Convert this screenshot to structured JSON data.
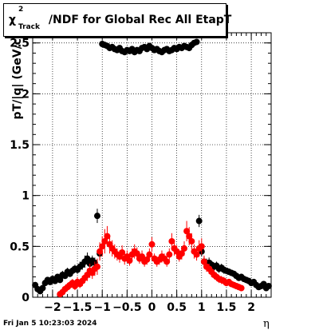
{
  "footer": {
    "timestamp": "Fri Jan  5 10:23:03 2024"
  },
  "chart_data": {
    "type": "scatter",
    "title": "χ²Track/NDF for Global Rec All EtapT",
    "title_parts": {
      "symbol": "χ",
      "sup": "2",
      "sub": "Track",
      "rest": "/NDF for Global Rec All EtapT"
    },
    "xlabel": "η",
    "ylabel": "pT/|q| (GeV/c",
    "xlim": [
      -2.4,
      2.4
    ],
    "ylim": [
      0,
      2.6
    ],
    "xticks": [
      -2,
      -1.5,
      -1,
      -0.5,
      0,
      0.5,
      1,
      1.5,
      2
    ],
    "xtick_labels": [
      "−2",
      "−1.5",
      "−1",
      "−0.5",
      "0",
      "0.5",
      "1",
      "1.5",
      "2"
    ],
    "yticks": [
      0,
      0.5,
      1,
      1.5,
      2,
      2.5
    ],
    "ytick_labels": [
      "0",
      "0.5",
      "1",
      "1.5",
      "2",
      "2.5"
    ],
    "grid": true,
    "series": [
      {
        "color": "#000000",
        "x": [
          -2.35,
          -2.3,
          -2.25,
          -2.2,
          -2.15,
          -2.1,
          -2.05,
          -2.0,
          -1.95,
          -1.9,
          -1.85,
          -1.8,
          -1.75,
          -1.7,
          -1.65,
          -1.6,
          -1.55,
          -1.5,
          -1.45,
          -1.4,
          -1.35,
          -1.3,
          -1.25,
          -1.2,
          -1.15,
          -1.1,
          -1.05,
          -1.0,
          -0.95,
          -0.9,
          -0.85,
          -0.8,
          -0.75,
          -0.7,
          -0.65,
          -0.6,
          -0.55,
          -0.5,
          -0.45,
          -0.4,
          -0.35,
          -0.3,
          -0.25,
          -0.2,
          -0.15,
          -0.1,
          -0.05,
          0.0,
          0.05,
          0.1,
          0.15,
          0.2,
          0.25,
          0.3,
          0.35,
          0.4,
          0.45,
          0.5,
          0.55,
          0.6,
          0.65,
          0.7,
          0.75,
          0.8,
          0.85,
          0.9,
          0.95,
          1.0,
          1.05,
          1.1,
          1.15,
          1.2,
          1.25,
          1.3,
          1.35,
          1.4,
          1.45,
          1.5,
          1.55,
          1.6,
          1.65,
          1.7,
          1.75,
          1.8,
          1.85,
          1.9,
          1.95,
          2.0,
          2.05,
          2.1,
          2.15,
          2.2,
          2.25,
          2.3,
          2.35
        ],
        "y": [
          0.12,
          0.08,
          0.06,
          0.09,
          0.14,
          0.17,
          0.15,
          0.18,
          0.16,
          0.2,
          0.17,
          0.22,
          0.21,
          0.25,
          0.23,
          0.26,
          0.28,
          0.27,
          0.3,
          0.32,
          0.35,
          0.38,
          0.33,
          0.36,
          0.34,
          0.8,
          0.43,
          2.49,
          2.48,
          2.47,
          2.45,
          2.46,
          2.44,
          2.43,
          2.45,
          2.42,
          2.41,
          2.43,
          2.42,
          2.44,
          2.41,
          2.43,
          2.42,
          2.45,
          2.46,
          2.44,
          2.47,
          2.45,
          2.43,
          2.44,
          2.42,
          2.41,
          2.43,
          2.44,
          2.42,
          2.43,
          2.45,
          2.44,
          2.46,
          2.45,
          2.47,
          2.46,
          2.45,
          2.48,
          2.5,
          2.51,
          0.75,
          0.45,
          0.35,
          0.33,
          0.34,
          0.32,
          0.3,
          0.31,
          0.28,
          0.29,
          0.27,
          0.26,
          0.25,
          0.24,
          0.23,
          0.21,
          0.19,
          0.2,
          0.18,
          0.17,
          0.16,
          0.14,
          0.15,
          0.12,
          0.1,
          0.11,
          0.13,
          0.09,
          0.11
        ],
        "err": [
          0.03,
          0.03,
          0.02,
          0.02,
          0.03,
          0.03,
          0.02,
          0.03,
          0.03,
          0.03,
          0.03,
          0.04,
          0.03,
          0.04,
          0.03,
          0.04,
          0.04,
          0.04,
          0.05,
          0.05,
          0.06,
          0.06,
          0.05,
          0.05,
          0.05,
          0.07,
          0.06,
          0.02,
          0.02,
          0.02,
          0.02,
          0.02,
          0.02,
          0.02,
          0.02,
          0.02,
          0.02,
          0.02,
          0.02,
          0.02,
          0.02,
          0.02,
          0.02,
          0.02,
          0.02,
          0.02,
          0.02,
          0.02,
          0.02,
          0.02,
          0.02,
          0.02,
          0.02,
          0.02,
          0.02,
          0.02,
          0.02,
          0.02,
          0.02,
          0.02,
          0.02,
          0.02,
          0.02,
          0.02,
          0.02,
          0.02,
          0.06,
          0.05,
          0.05,
          0.05,
          0.05,
          0.04,
          0.04,
          0.04,
          0.04,
          0.04,
          0.04,
          0.03,
          0.03,
          0.03,
          0.03,
          0.03,
          0.03,
          0.03,
          0.03,
          0.03,
          0.03,
          0.03,
          0.03,
          0.02,
          0.02,
          0.02,
          0.02,
          0.02,
          0.02
        ]
      },
      {
        "color": "#ff0000",
        "x": [
          -1.85,
          -1.8,
          -1.75,
          -1.7,
          -1.65,
          -1.6,
          -1.55,
          -1.5,
          -1.45,
          -1.4,
          -1.35,
          -1.3,
          -1.25,
          -1.2,
          -1.15,
          -1.1,
          -1.05,
          -1.0,
          -0.95,
          -0.9,
          -0.85,
          -0.8,
          -0.75,
          -0.7,
          -0.65,
          -0.6,
          -0.55,
          -0.5,
          -0.45,
          -0.4,
          -0.35,
          -0.3,
          -0.25,
          -0.2,
          -0.15,
          -0.1,
          -0.05,
          0.0,
          0.05,
          0.1,
          0.15,
          0.2,
          0.25,
          0.3,
          0.35,
          0.4,
          0.45,
          0.5,
          0.55,
          0.6,
          0.65,
          0.7,
          0.75,
          0.8,
          0.85,
          0.9,
          0.95,
          1.0,
          1.05,
          1.1,
          1.15,
          1.2,
          1.25,
          1.3,
          1.35,
          1.4,
          1.45,
          1.5,
          1.55,
          1.6,
          1.65,
          1.7,
          1.75,
          1.8
        ],
        "y": [
          0.03,
          0.05,
          0.08,
          0.1,
          0.12,
          0.14,
          0.11,
          0.15,
          0.13,
          0.16,
          0.19,
          0.22,
          0.26,
          0.24,
          0.28,
          0.3,
          0.45,
          0.5,
          0.55,
          0.6,
          0.52,
          0.48,
          0.45,
          0.42,
          0.4,
          0.44,
          0.38,
          0.4,
          0.36,
          0.42,
          0.45,
          0.43,
          0.38,
          0.4,
          0.35,
          0.37,
          0.42,
          0.52,
          0.38,
          0.35,
          0.37,
          0.4,
          0.38,
          0.35,
          0.42,
          0.55,
          0.48,
          0.45,
          0.4,
          0.43,
          0.48,
          0.65,
          0.6,
          0.55,
          0.45,
          0.42,
          0.48,
          0.5,
          0.35,
          0.3,
          0.28,
          0.25,
          0.22,
          0.2,
          0.18,
          0.17,
          0.16,
          0.14,
          0.15,
          0.13,
          0.12,
          0.11,
          0.1,
          0.09
        ],
        "err": [
          0.03,
          0.03,
          0.03,
          0.04,
          0.04,
          0.04,
          0.04,
          0.05,
          0.04,
          0.05,
          0.05,
          0.06,
          0.07,
          0.06,
          0.07,
          0.08,
          0.09,
          0.1,
          0.12,
          0.1,
          0.09,
          0.08,
          0.07,
          0.06,
          0.06,
          0.07,
          0.06,
          0.06,
          0.05,
          0.06,
          0.07,
          0.06,
          0.05,
          0.06,
          0.05,
          0.05,
          0.06,
          0.07,
          0.05,
          0.05,
          0.05,
          0.06,
          0.05,
          0.05,
          0.06,
          0.08,
          0.07,
          0.06,
          0.05,
          0.06,
          0.07,
          0.1,
          0.09,
          0.08,
          0.07,
          0.06,
          0.08,
          0.08,
          0.06,
          0.05,
          0.05,
          0.05,
          0.04,
          0.04,
          0.04,
          0.04,
          0.04,
          0.03,
          0.03,
          0.03,
          0.03,
          0.03,
          0.03,
          0.03
        ]
      }
    ]
  }
}
